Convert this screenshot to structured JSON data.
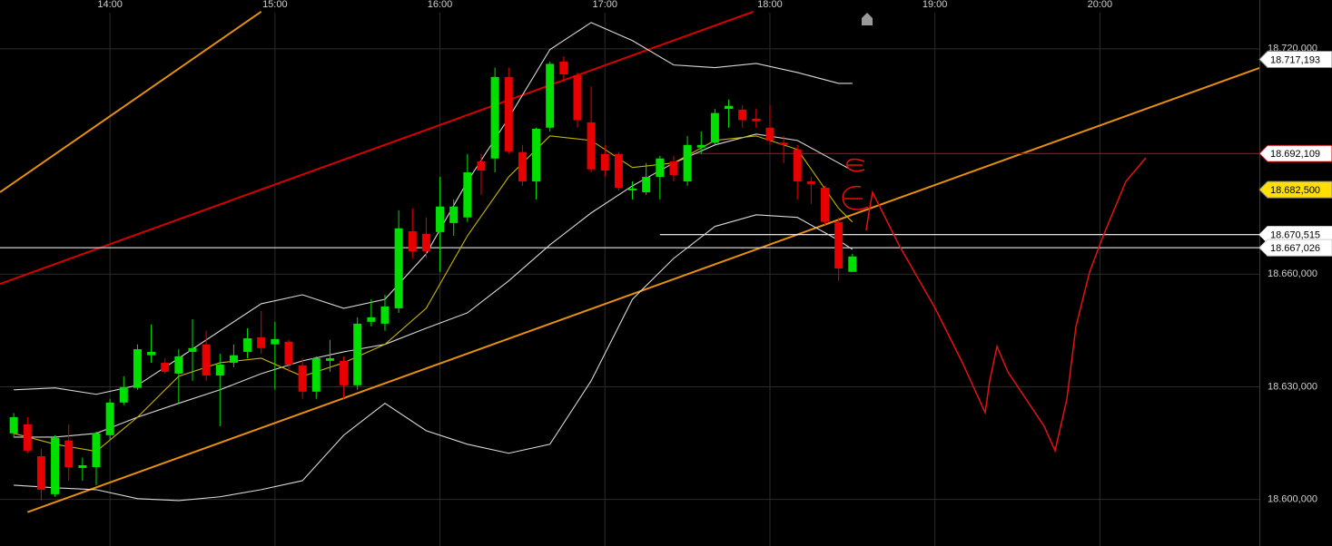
{
  "chart_data": {
    "type": "candlestick",
    "x": [
      "13:25",
      "13:30",
      "13:35",
      "13:40",
      "13:45",
      "13:50",
      "13:55",
      "14:00",
      "14:05",
      "14:10",
      "14:15",
      "14:20",
      "14:25",
      "14:30",
      "14:35",
      "14:40",
      "14:45",
      "14:50",
      "14:55",
      "15:00",
      "15:05",
      "15:10",
      "15:15",
      "15:20",
      "15:25",
      "15:30",
      "15:35",
      "15:40",
      "15:45",
      "15:50",
      "15:55",
      "16:00",
      "16:05",
      "16:10",
      "16:15",
      "16:20",
      "16:25",
      "16:30",
      "16:35",
      "16:40",
      "16:45",
      "16:50",
      "16:55",
      "17:00",
      "17:05",
      "17:10",
      "17:15",
      "17:20",
      "17:25",
      "17:30",
      "17:35",
      "17:40",
      "17:45",
      "17:50",
      "17:55",
      "18:00",
      "18:05",
      "18:10",
      "18:15",
      "18:20",
      "18:25",
      "18:30"
    ],
    "open": [
      18.6176,
      18.62,
      18.6115,
      18.6014,
      18.6157,
      18.6084,
      18.6086,
      18.6171,
      18.6258,
      18.6297,
      18.6384,
      18.6364,
      18.6335,
      18.6393,
      18.6413,
      18.633,
      18.6364,
      18.6393,
      18.6432,
      18.6413,
      18.642,
      18.6357,
      18.6287,
      18.6369,
      18.6369,
      18.6304,
      18.6473,
      18.6468,
      18.6509,
      18.6714,
      18.6707,
      18.6712,
      18.6736,
      18.6751,
      18.69,
      18.6908,
      18.7125,
      18.6925,
      18.6847,
      18.699,
      18.7166,
      18.713,
      18.7004,
      18.692,
      18.692,
      18.6823,
      18.6818,
      18.6859,
      18.69,
      18.6847,
      18.6937,
      18.695,
      18.704,
      18.7038,
      18.7014,
      18.699,
      18.695,
      18.6932,
      18.6847,
      18.683,
      18.6739,
      18.6606
    ],
    "high": [
      18.623,
      18.6219,
      18.6135,
      18.6171,
      18.62,
      18.6111,
      18.6181,
      18.6268,
      18.6328,
      18.6413,
      18.6466,
      18.6376,
      18.64,
      18.648,
      18.6449,
      18.6388,
      18.6413,
      18.6456,
      18.6502,
      18.6473,
      18.6425,
      18.6376,
      18.6381,
      18.6425,
      18.6381,
      18.6485,
      18.6533,
      18.6545,
      18.677,
      18.6775,
      18.6751,
      18.6859,
      18.6799,
      18.692,
      18.692,
      18.715,
      18.715,
      18.6944,
      18.699,
      18.7166,
      18.718,
      18.7137,
      18.71,
      18.6944,
      18.6925,
      18.6847,
      18.6896,
      18.6915,
      18.6915,
      18.6968,
      18.698,
      18.704,
      18.7065,
      18.705,
      18.704,
      18.705,
      18.6968,
      18.6944,
      18.6859,
      18.6835,
      18.6751,
      18.6654
    ],
    "low": [
      18.6166,
      18.6123,
      18.5997,
      18.6007,
      18.605,
      18.605,
      18.6038,
      18.6159,
      18.6251,
      18.6292,
      18.6364,
      18.6335,
      18.6256,
      18.6316,
      18.6316,
      18.6195,
      18.6352,
      18.6376,
      18.6388,
      18.6292,
      18.634,
      18.6268,
      18.6268,
      18.634,
      18.6268,
      18.6292,
      18.6461,
      18.6449,
      18.6497,
      18.6642,
      18.6642,
      18.6606,
      18.6702,
      18.6739,
      18.6811,
      18.6871,
      18.692,
      18.6835,
      18.6799,
      18.698,
      18.7113,
      18.699,
      18.6871,
      18.6859,
      18.6823,
      18.6799,
      18.6811,
      18.6799,
      18.6847,
      18.6835,
      18.692,
      18.6944,
      18.699,
      18.699,
      18.699,
      18.6944,
      18.6896,
      18.6799,
      18.6787,
      18.6731,
      18.6582,
      18.6606
    ],
    "close": [
      18.6219,
      18.613,
      18.6026,
      18.6164,
      18.6086,
      18.6091,
      18.6176,
      18.6258,
      18.6299,
      18.64,
      18.6393,
      18.634,
      18.6381,
      18.6403,
      18.633,
      18.6359,
      18.6384,
      18.6429,
      18.6403,
      18.6427,
      18.6359,
      18.6287,
      18.6376,
      18.6376,
      18.6304,
      18.6468,
      18.6485,
      18.6514,
      18.6722,
      18.6661,
      18.6661,
      18.678,
      18.678,
      18.6871,
      18.6876,
      18.7125,
      18.6927,
      18.6847,
      18.6987,
      18.716,
      18.7132,
      18.701,
      18.6879,
      18.6876,
      18.683,
      18.6828,
      18.6859,
      18.6908,
      18.6864,
      18.6944,
      18.6944,
      18.7029,
      18.7048,
      18.701,
      18.7007,
      18.6956,
      18.6944,
      18.6847,
      18.684,
      18.6739,
      18.6615,
      18.6647
    ],
    "up_color": "#00e000",
    "down_color": "#e80000",
    "xlim": [
      "13:20",
      "20:58"
    ],
    "xticks": [
      "14:00",
      "15:00",
      "16:00",
      "17:00",
      "18:00",
      "19:00",
      "20:00"
    ],
    "ylim": [
      18.5876,
      18.733
    ],
    "yticks": [
      {
        "value": 18.6,
        "label": "18.600,000"
      },
      {
        "value": 18.63,
        "label": "18.630,000"
      },
      {
        "value": 18.66,
        "label": "18.660,000"
      },
      {
        "value": 18.72,
        "label": "18.720,000"
      }
    ],
    "grid": true,
    "overlay_x": [
      "13:25",
      "13:40",
      "13:55",
      "14:10",
      "14:25",
      "14:40",
      "14:55",
      "15:10",
      "15:25",
      "15:40",
      "15:55",
      "16:10",
      "16:25",
      "16:40",
      "16:55",
      "17:10",
      "17:25",
      "17:40",
      "17:55",
      "18:10",
      "18:25",
      "18:30"
    ],
    "overlays": [
      {
        "color": "#d8d8d8",
        "values": [
          18.6292,
          18.6297,
          18.628,
          18.6304,
          18.6376,
          18.6449,
          18.6521,
          18.6545,
          18.6509,
          18.6533,
          18.6654,
          18.6847,
          18.7016,
          18.7198,
          18.727,
          18.7222,
          18.7157,
          18.715,
          18.7161,
          18.7137,
          18.7108,
          18.7108
        ]
      },
      {
        "color": "#d8d8d8",
        "values": [
          18.6166,
          18.6166,
          18.6176,
          18.6219,
          18.6256,
          18.6292,
          18.6335,
          18.6369,
          18.6393,
          18.6413,
          18.6456,
          18.6497,
          18.6582,
          18.6678,
          18.6763,
          18.6835,
          18.6896,
          18.6944,
          18.6973,
          18.6956,
          18.6896,
          18.6876
        ]
      },
      {
        "color": "#d8d8d8",
        "values": [
          18.6038,
          18.6031,
          18.6026,
          18.6002,
          18.5997,
          18.6007,
          18.6026,
          18.605,
          18.6171,
          18.6256,
          18.6183,
          18.6147,
          18.6123,
          18.6147,
          18.6316,
          18.6533,
          18.6642,
          18.6727,
          18.6758,
          18.6751,
          18.669,
          18.6666
        ]
      },
      {
        "color": "#c9b400",
        "values": [
          18.6176,
          18.6147,
          18.6128,
          18.6219,
          18.6328,
          18.6364,
          18.6376,
          18.6328,
          18.6364,
          18.6413,
          18.6509,
          18.6702,
          18.6859,
          18.6968,
          18.6956,
          18.6884,
          18.6896,
          18.6956,
          18.6968,
          18.6932,
          18.6775,
          18.6739
        ]
      }
    ],
    "trendlines": [
      {
        "color": "#d60000",
        "x": [
          "13:20",
          "17:54"
        ],
        "values": [
          18.6574,
          18.7299
        ]
      },
      {
        "color": "#e8900a",
        "x": [
          "13:30",
          "20:58"
        ],
        "values": [
          18.5966,
          18.7149
        ]
      },
      {
        "color": "#e8900a",
        "x": [
          "13:20",
          "14:55"
        ],
        "values": [
          18.6818,
          18.7299
        ]
      }
    ],
    "levels": [
      {
        "value": 18.717193,
        "label": "18.717,193",
        "tag_color": "#ffffff"
      },
      {
        "value": 18.692109,
        "label": "18.692,109",
        "tag_color": "#ffffff",
        "color": "#c80000",
        "start": "17:30"
      },
      {
        "value": 18.6825,
        "label": "18.682,500",
        "tag_color": "#ffe000"
      },
      {
        "value": 18.670515,
        "label": "18.670,515",
        "tag_color": "#ffffff",
        "color": "#ffffff",
        "start": "17:20"
      },
      {
        "value": 18.667026,
        "label": "18.667,026",
        "tag_color": "#ffffff",
        "color": "#cfcfcf",
        "start": "13:20"
      }
    ]
  }
}
